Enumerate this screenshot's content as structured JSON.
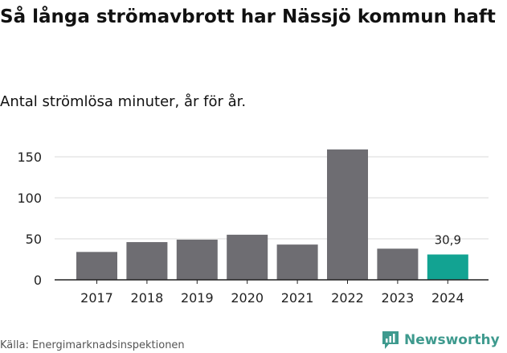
{
  "title": "Så långa strömavbrott har Nässjö kommun haft",
  "subtitle": "Antal strömlösa minuter, år för år.",
  "source": "Källa: Energimarknadsinspektionen",
  "brand": {
    "name": "Newsworthy",
    "icon": "newsworthy-logo-icon"
  },
  "colors": {
    "bar": "#6e6d72",
    "highlight": "#12a392",
    "grid": "#d9d9d9",
    "axis": "#222222",
    "brand": "#3e9a8e"
  },
  "chart_data": {
    "type": "bar",
    "title": "Så långa strömavbrott har Nässjö kommun haft",
    "subtitle": "Antal strömlösa minuter, år för år.",
    "categories": [
      "2017",
      "2018",
      "2019",
      "2020",
      "2021",
      "2022",
      "2023",
      "2024"
    ],
    "values": [
      34,
      46,
      49,
      55,
      43,
      159,
      38,
      30.9
    ],
    "highlight_index": 7,
    "data_labels": [
      {
        "index": 7,
        "text": "30,9"
      }
    ],
    "xlabel": "",
    "ylabel": "",
    "ylim": [
      0,
      165
    ],
    "yticks": [
      0,
      50,
      100,
      150
    ],
    "grid": true
  }
}
